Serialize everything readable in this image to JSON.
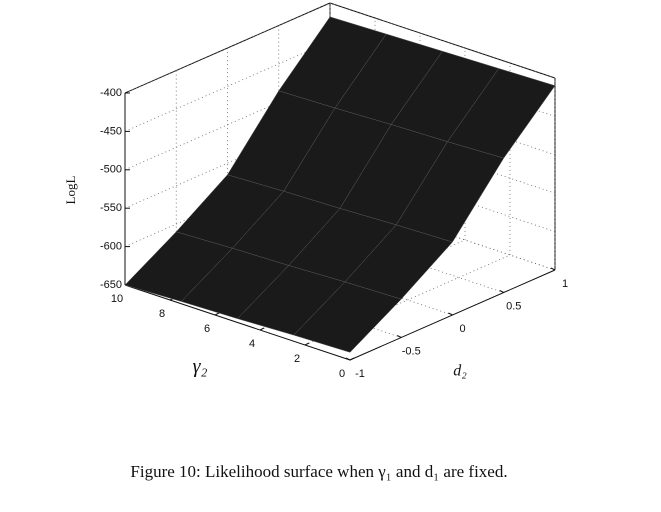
{
  "chart_data": {
    "type": "surface",
    "zlabel": "LogL",
    "ylabel": "γ₂",
    "xlabel": "d₂",
    "caption": "Figure 10: Likelihood surface when γ₁ and d₁ are fixed.",
    "x": [
      -1,
      -0.5,
      0,
      0.5,
      1
    ],
    "y": [
      0,
      2.5,
      5,
      7.5,
      10
    ],
    "z": [
      [
        -640,
        -600,
        -555,
        -475,
        -410
      ],
      [
        -642,
        -602,
        -557,
        -478,
        -412
      ],
      [
        -645,
        -605,
        -560,
        -480,
        -414
      ],
      [
        -647,
        -607,
        -562,
        -483,
        -416
      ],
      [
        -650,
        -610,
        -565,
        -485,
        -418
      ]
    ],
    "xlim": [
      -1,
      1
    ],
    "xticks": [
      -1,
      -0.5,
      0,
      0.5,
      1
    ],
    "ylim": [
      0,
      10
    ],
    "yticks": [
      0,
      2,
      4,
      6,
      8,
      10
    ],
    "zlim": [
      -650,
      -400
    ],
    "zticks": [
      -650,
      -600,
      -550,
      -500,
      -450,
      -400
    ],
    "grid": true,
    "color": "#1a1a1a"
  }
}
